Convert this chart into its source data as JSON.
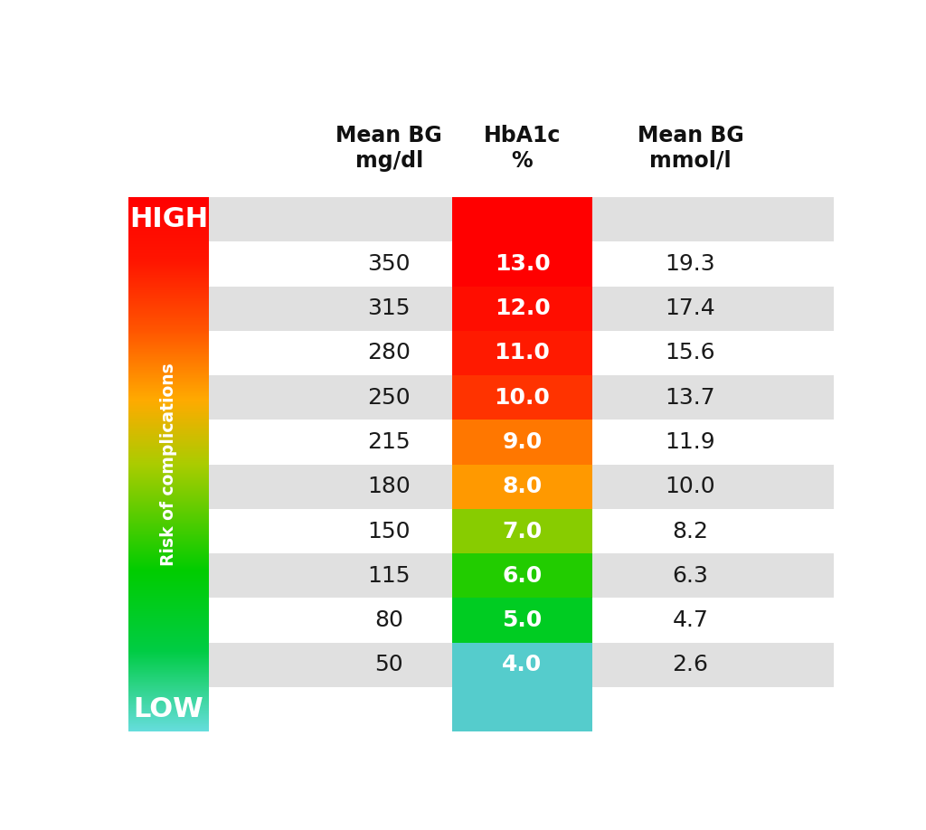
{
  "headers": [
    "Mean BG\nmg/dl",
    "HbA1c\n%",
    "Mean BG\nmmol/l"
  ],
  "rows": [
    {
      "mg_dl": "HIGH",
      "hba1c": null,
      "mmol": null,
      "is_label": true
    },
    {
      "mg_dl": "350",
      "hba1c": "13.0",
      "mmol": "19.3",
      "is_label": false
    },
    {
      "mg_dl": "315",
      "hba1c": "12.0",
      "mmol": "17.4",
      "is_label": false
    },
    {
      "mg_dl": "280",
      "hba1c": "11.0",
      "mmol": "15.6",
      "is_label": false
    },
    {
      "mg_dl": "250",
      "hba1c": "10.0",
      "mmol": "13.7",
      "is_label": false
    },
    {
      "mg_dl": "215",
      "hba1c": "9.0",
      "mmol": "11.9",
      "is_label": false
    },
    {
      "mg_dl": "180",
      "hba1c": "8.0",
      "mmol": "10.0",
      "is_label": false
    },
    {
      "mg_dl": "150",
      "hba1c": "7.0",
      "mmol": "8.2",
      "is_label": false
    },
    {
      "mg_dl": "115",
      "hba1c": "6.0",
      "mmol": "6.3",
      "is_label": false
    },
    {
      "mg_dl": "80",
      "hba1c": "5.0",
      "mmol": "4.7",
      "is_label": false
    },
    {
      "mg_dl": "50",
      "hba1c": "4.0",
      "mmol": "2.6",
      "is_label": false
    },
    {
      "mg_dl": "LOW",
      "hba1c": null,
      "mmol": null,
      "is_label": true
    }
  ],
  "high_label": "HIGH",
  "low_label": "LOW",
  "risk_label": "Risk of complications",
  "bg_color": "#ffffff",
  "row_stripe_color": "#e0e0e0",
  "hba1c_text_color": "#ffffff",
  "data_text_color": "#1a1a1a",
  "header_text_color": "#111111",
  "hba1c_col_colors": [
    "#ff0000",
    "#ff0000",
    "#ff0d00",
    "#ff1a00",
    "#ff3300",
    "#ff7700",
    "#ff9900",
    "#88cc00",
    "#22cc00",
    "#00cc22",
    "#55cccc",
    "#55cccc"
  ],
  "left_bar_gradient": [
    [
      0.0,
      "#66dddd"
    ],
    [
      0.15,
      "#00cc44"
    ],
    [
      0.3,
      "#00cc00"
    ],
    [
      0.5,
      "#aacc00"
    ],
    [
      0.62,
      "#ffaa00"
    ],
    [
      0.75,
      "#ff5500"
    ],
    [
      0.88,
      "#ff1500"
    ],
    [
      1.0,
      "#ff0000"
    ]
  ]
}
